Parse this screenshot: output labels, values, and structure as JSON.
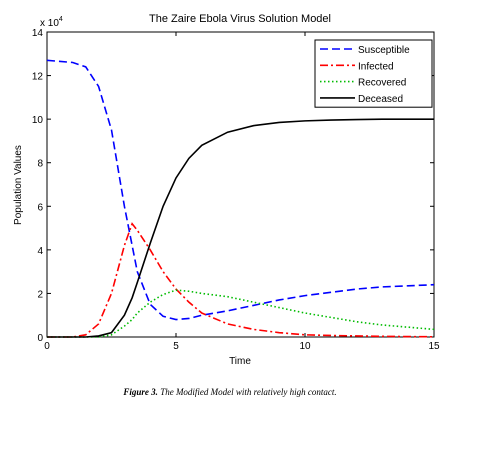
{
  "chart_data": {
    "type": "line",
    "title": "The Zaire Ebola Virus Solution Model",
    "x_label": "Time",
    "y_label": "Population Values",
    "y_multiplier": {
      "base": "x 10",
      "exponent": "4"
    },
    "x": [
      0,
      1,
      1.5,
      2,
      2.5,
      3,
      3.3,
      3.5,
      4,
      4.5,
      5,
      5.5,
      6,
      7,
      8,
      9,
      10,
      11,
      12,
      13,
      14,
      15
    ],
    "series": [
      {
        "name": "Susceptible",
        "color": "#0000ff",
        "dash": "dashed",
        "values": [
          12.7,
          12.6,
          12.4,
          11.5,
          9.5,
          6,
          4.2,
          3,
          1.5,
          0.95,
          0.8,
          0.85,
          1.0,
          1.2,
          1.45,
          1.7,
          1.9,
          2.05,
          2.2,
          2.3,
          2.35,
          2.4
        ]
      },
      {
        "name": "Infected",
        "color": "#ff0000",
        "dash": "dash-dot",
        "values": [
          0,
          0,
          0.1,
          0.6,
          2,
          4.2,
          5.2,
          4.9,
          4,
          3,
          2.2,
          1.6,
          1.1,
          0.6,
          0.35,
          0.2,
          0.1,
          0.07,
          0.05,
          0.03,
          0.02,
          0.01
        ]
      },
      {
        "name": "Recovered",
        "color": "#00bb00",
        "dash": "dotted",
        "values": [
          0,
          0,
          0,
          0,
          0.1,
          0.5,
          0.8,
          1.1,
          1.6,
          1.95,
          2.15,
          2.1,
          2.0,
          1.85,
          1.6,
          1.35,
          1.1,
          0.9,
          0.7,
          0.55,
          0.45,
          0.35
        ]
      },
      {
        "name": "Deceased",
        "color": "#000000",
        "dash": "solid",
        "values": [
          0,
          0,
          0,
          0.05,
          0.2,
          1,
          1.8,
          2.5,
          4.3,
          6,
          7.3,
          8.2,
          8.8,
          9.4,
          9.7,
          9.85,
          9.92,
          9.96,
          9.98,
          10,
          10,
          10
        ]
      }
    ],
    "xlim": [
      0,
      15
    ],
    "xticks": [
      0,
      5,
      10,
      15
    ],
    "ylim": [
      0,
      14
    ],
    "yticks": [
      0,
      2,
      4,
      6,
      8,
      10,
      12,
      14
    ],
    "grid": false,
    "legend_position": "upper-right"
  },
  "caption": {
    "label": "Figure 3.",
    "text": "The Modified Model with relatively high contact."
  }
}
